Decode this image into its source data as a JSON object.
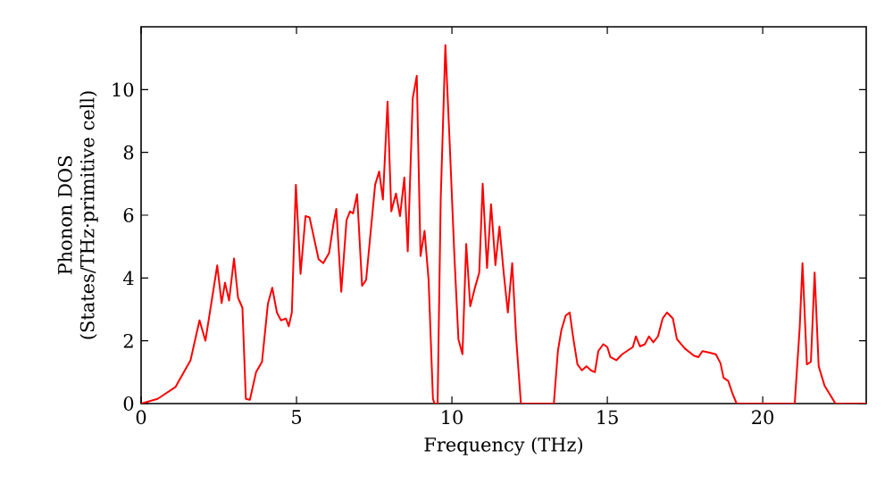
{
  "chart_data": {
    "type": "line",
    "xlabel": "Frequency (THz)",
    "ylabel": "Phonon DOS (States/THz·primitive cell)",
    "xlim": [
      0,
      23.33
    ],
    "ylim": [
      0,
      12
    ],
    "xticks": [
      0,
      5,
      10,
      15,
      20
    ],
    "yticks": [
      0,
      2,
      4,
      6,
      8,
      10
    ],
    "grid": false,
    "marker": "none",
    "line_style": "solid",
    "series": [
      {
        "color": "#ff0000",
        "x": [
          0,
          0.53,
          1.11,
          1.59,
          1.88,
          2.07,
          2.45,
          2.59,
          2.7,
          2.83,
          2.99,
          3.12,
          3.26,
          3.37,
          3.5,
          3.7,
          3.89,
          4.08,
          4.22,
          4.37,
          4.5,
          4.66,
          4.75,
          4.85,
          4.98,
          5.13,
          5.29,
          5.42,
          5.71,
          5.86,
          6.05,
          6.19,
          6.28,
          6.44,
          6.61,
          6.72,
          6.82,
          6.95,
          7.11,
          7.24,
          7.53,
          7.66,
          7.78,
          7.93,
          8.05,
          8.2,
          8.33,
          8.47,
          8.58,
          8.74,
          8.87,
          8.99,
          9.12,
          9.25,
          9.39,
          9.44,
          9.54,
          9.64,
          9.79,
          9.92,
          10.08,
          10.21,
          10.34,
          10.46,
          10.59,
          10.73,
          10.88,
          10.99,
          11.13,
          11.26,
          11.4,
          11.53,
          11.67,
          11.8,
          11.94,
          12.07,
          12.22,
          13.28,
          13.41,
          13.52,
          13.66,
          13.79,
          13.91,
          14.04,
          14.18,
          14.33,
          14.47,
          14.6,
          14.71,
          14.87,
          15.0,
          15.1,
          15.29,
          15.48,
          15.67,
          15.82,
          15.92,
          16.05,
          16.21,
          16.34,
          16.48,
          16.63,
          16.78,
          16.92,
          17.11,
          17.24,
          17.49,
          17.78,
          17.93,
          18.06,
          18.26,
          18.49,
          18.64,
          18.74,
          18.89,
          19.02,
          19.16,
          21.03,
          21.19,
          21.28,
          21.42,
          21.55,
          21.67,
          21.8,
          21.99,
          22.34,
          23.33
        ],
        "values": [
          0,
          0.15,
          0.53,
          1.38,
          2.65,
          2.0,
          4.4,
          3.2,
          3.85,
          3.28,
          4.62,
          3.37,
          3.05,
          0.15,
          0.12,
          1.0,
          1.33,
          3.18,
          3.69,
          2.9,
          2.65,
          2.71,
          2.46,
          2.9,
          6.97,
          4.13,
          5.97,
          5.93,
          4.6,
          4.47,
          4.8,
          5.73,
          6.2,
          3.56,
          5.84,
          6.12,
          6.06,
          6.67,
          3.75,
          3.94,
          6.97,
          7.39,
          6.5,
          9.62,
          6.12,
          6.69,
          5.97,
          7.2,
          4.85,
          9.72,
          10.44,
          4.7,
          5.5,
          3.94,
          0.15,
          0,
          0,
          6.5,
          11.42,
          8.5,
          4.7,
          2.05,
          1.57,
          5.08,
          3.1,
          3.65,
          4.17,
          7.0,
          4.32,
          6.35,
          4.41,
          5.64,
          4.13,
          2.9,
          4.47,
          2.05,
          0,
          0,
          1.67,
          2.33,
          2.8,
          2.9,
          2.05,
          1.25,
          1.06,
          1.19,
          1.06,
          1.0,
          1.67,
          1.89,
          1.8,
          1.48,
          1.38,
          1.57,
          1.7,
          1.8,
          2.14,
          1.82,
          1.89,
          2.14,
          1.95,
          2.14,
          2.71,
          2.9,
          2.71,
          2.05,
          1.76,
          1.53,
          1.48,
          1.67,
          1.63,
          1.57,
          1.29,
          0.82,
          0.72,
          0.34,
          0,
          0,
          2.42,
          4.47,
          1.25,
          1.33,
          4.17,
          1.19,
          0.57,
          0,
          0
        ]
      }
    ]
  }
}
